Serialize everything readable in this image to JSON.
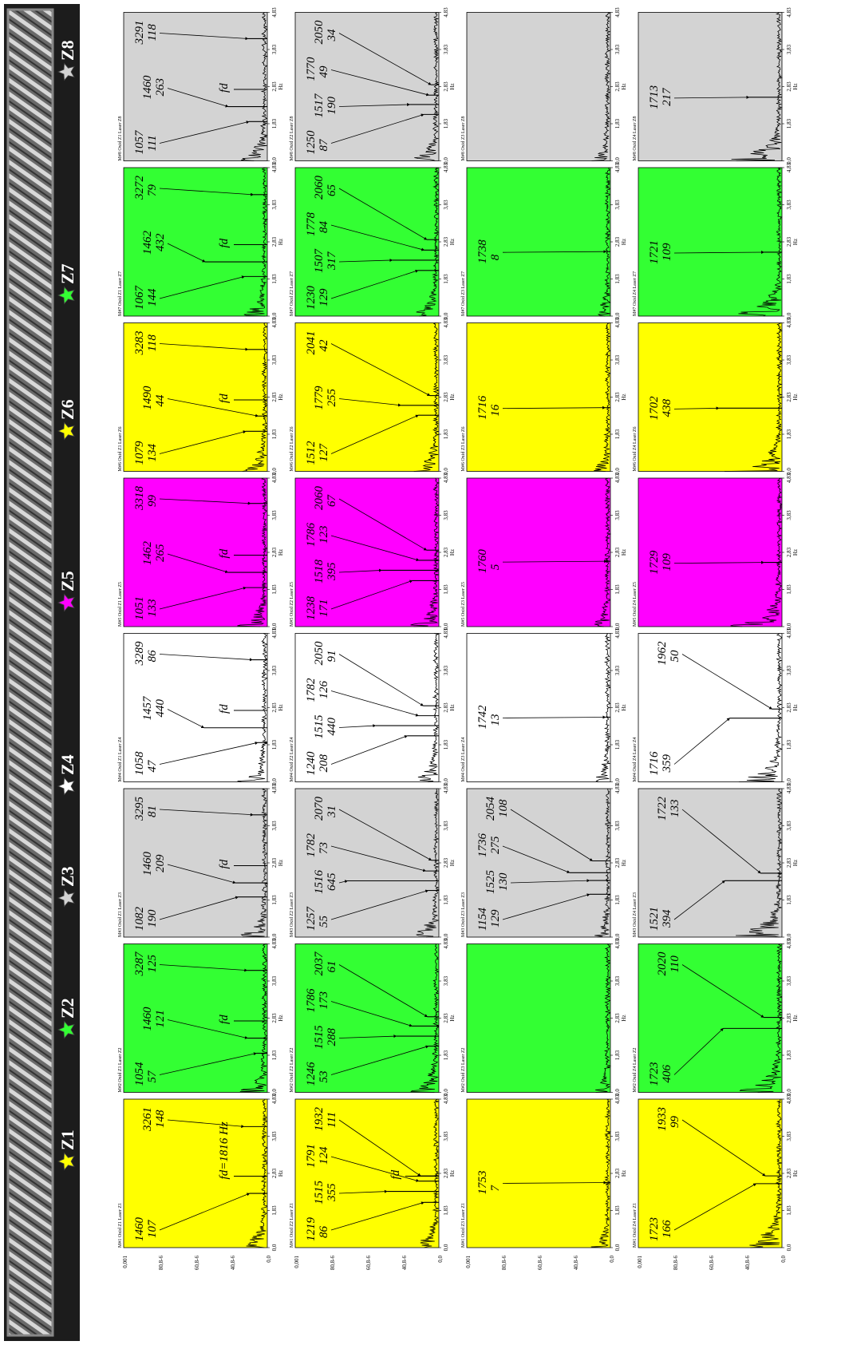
{
  "zones": [
    "Z1",
    "Z2",
    "Z3",
    "Z4",
    "Z5",
    "Z6",
    "Z7",
    "Z8"
  ],
  "freq_ticks": [
    "0,0",
    "1,83",
    "2,83",
    "3,83",
    "4,83"
  ],
  "freq_unit": "Hz",
  "amp_ticks": [
    "0,001",
    "80,8-6",
    "60,8-6",
    "40,8-6",
    "0,0"
  ],
  "columns": [
    {
      "panels": [
        {
          "title": "M#1 Oxid Z1 Laser Z1",
          "annotations": [
            {
              "freq": 1460,
              "amp": 107
            },
            {
              "text": "fd=1816 Hz"
            },
            {
              "freq": 3261,
              "amp": 148
            }
          ]
        },
        {
          "title": "M#2 Oxid Z1 Laser Z2",
          "annotations": [
            {
              "freq": 1054,
              "amp": 57
            },
            {
              "freq": 1460,
              "amp": 121
            },
            {
              "text": "fd"
            },
            {
              "freq": 3287,
              "amp": 125
            }
          ]
        },
        {
          "title": "M#3 Oxid Z1 Laser Z3",
          "annotations": [
            {
              "freq": 1082,
              "amp": 190
            },
            {
              "freq": 1460,
              "amp": 209
            },
            {
              "text": "fd"
            },
            {
              "freq": 3295,
              "amp": 81
            }
          ]
        },
        {
          "title": "M#4 Oxid Z1 Laser Z4",
          "annotations": [
            {
              "freq": 1058,
              "amp": 47
            },
            {
              "freq": 1457,
              "amp": 440
            },
            {
              "text": "fd"
            },
            {
              "freq": 3289,
              "amp": 86
            }
          ]
        },
        {
          "title": "M#5 Oxid Z1 Laser Z5",
          "annotations": [
            {
              "freq": 1051,
              "amp": 133
            },
            {
              "freq": 1462,
              "amp": 265
            },
            {
              "text": "fd"
            },
            {
              "freq": 3318,
              "amp": 99
            }
          ]
        },
        {
          "title": "M#6 Oxid Z1 Laser Z6",
          "annotations": [
            {
              "freq": 1079,
              "amp": 134
            },
            {
              "freq": 1490,
              "amp": 44
            },
            {
              "text": "fd"
            },
            {
              "freq": 3283,
              "amp": 118
            }
          ]
        },
        {
          "title": "M#7 Oxid Z1 Laser Z7",
          "annotations": [
            {
              "freq": 1067,
              "amp": 144
            },
            {
              "freq": 1462,
              "amp": 432
            },
            {
              "text": "fd"
            },
            {
              "freq": 3272,
              "amp": 79
            }
          ]
        },
        {
          "title": "M#8 Oxid Z1 Laser Z8",
          "annotations": [
            {
              "freq": 1057,
              "amp": 111
            },
            {
              "freq": 1460,
              "amp": 263
            },
            {
              "text": "fd"
            },
            {
              "freq": 3291,
              "amp": 118
            }
          ]
        }
      ]
    },
    {
      "panels": [
        {
          "title": "M#1 Oxid Z2 Laser Z1",
          "annotations": [
            {
              "freq": 1219,
              "amp": 86
            },
            {
              "freq": 1515,
              "amp": 355
            },
            {
              "freq": 1791,
              "amp": 124
            },
            {
              "text": "fd"
            },
            {
              "freq": 1932,
              "amp": 111
            }
          ]
        },
        {
          "title": "M#2 Oxid Z2 Laser Z2",
          "annotations": [
            {
              "freq": 1246,
              "amp": 53
            },
            {
              "freq": 1515,
              "amp": 288
            },
            {
              "freq": 1786,
              "amp": 173
            },
            {
              "freq": 2037,
              "amp": 61
            }
          ]
        },
        {
          "title": "M#3 Oxid Z2 Laser Z3",
          "annotations": [
            {
              "freq": 1257,
              "amp": 55
            },
            {
              "freq": 1516,
              "amp": 645
            },
            {
              "freq": 1782,
              "amp": 73
            },
            {
              "freq": 2070,
              "amp": 31
            }
          ]
        },
        {
          "title": "M#4 Oxid Z2 Laser Z4",
          "annotations": [
            {
              "freq": 1240,
              "amp": 208
            },
            {
              "freq": 1515,
              "amp": 440
            },
            {
              "freq": 1782,
              "amp": 126
            },
            {
              "freq": 2050,
              "amp": 91
            }
          ]
        },
        {
          "title": "M#5 Oxid Z2 Laser Z5",
          "annotations": [
            {
              "freq": 1238,
              "amp": 171
            },
            {
              "freq": 1518,
              "amp": 395
            },
            {
              "freq": 1786,
              "amp": 123
            },
            {
              "freq": 2060,
              "amp": 67
            }
          ]
        },
        {
          "title": "M#6 Oxid Z2 Laser Z6",
          "annotations": [
            {
              "freq": 1512,
              "amp": 127
            },
            {
              "freq": 1779,
              "amp": 255
            },
            {
              "freq": 2041,
              "amp": 42
            }
          ]
        },
        {
          "title": "M#7 Oxid Z2 Laser Z7",
          "annotations": [
            {
              "freq": 1230,
              "amp": 129
            },
            {
              "freq": 1507,
              "amp": 317
            },
            {
              "freq": 1778,
              "amp": 84
            },
            {
              "freq": 2060,
              "amp": 65
            }
          ]
        },
        {
          "title": "M#8 Oxid Z2 Laser Z8",
          "annotations": [
            {
              "freq": 1250,
              "amp": 87
            },
            {
              "freq": 1517,
              "amp": 190
            },
            {
              "freq": 1770,
              "amp": 49
            },
            {
              "freq": 2050,
              "amp": 34
            }
          ]
        }
      ]
    },
    {
      "panels": [
        {
          "title": "M#1 Oxid Z3 Laser Z1",
          "annotations": [
            {
              "freq": 1753,
              "amp": 7
            }
          ]
        },
        {
          "title": "M#2 Oxid Z3 Laser Z2",
          "annotations": []
        },
        {
          "title": "M#3 Oxid Z3 Laser Z3",
          "annotations": [
            {
              "freq": 1154,
              "amp": 129
            },
            {
              "freq": 1525,
              "amp": 130
            },
            {
              "freq": 1736,
              "amp": 275
            },
            {
              "freq": 2054,
              "amp": 108
            }
          ]
        },
        {
          "title": "M#4 Oxid Z3 Laser Z4",
          "annotations": [
            {
              "freq": 1742,
              "amp": 13
            }
          ]
        },
        {
          "title": "M#5 Oxid Z3 Laser Z5",
          "annotations": [
            {
              "freq": 1760,
              "amp": 5
            }
          ]
        },
        {
          "title": "M#6 Oxid Z3 Laser Z6",
          "annotations": [
            {
              "freq": 1716,
              "amp": 16
            }
          ]
        },
        {
          "title": "M#7 Oxid Z3 Laser Z7",
          "annotations": [
            {
              "freq": 1738,
              "amp": 8
            }
          ]
        },
        {
          "title": "M#8 Oxid Z3 Laser Z8",
          "annotations": []
        }
      ]
    },
    {
      "panels": [
        {
          "title": "M#1 Oxid Z4 Laser Z1",
          "annotations": [
            {
              "freq": 1723,
              "amp": 166
            },
            {
              "freq": 1933,
              "amp": 99
            }
          ]
        },
        {
          "title": "M#2 Oxid Z4 Laser Z2",
          "annotations": [
            {
              "freq": 1723,
              "amp": 406
            },
            {
              "freq": 2020,
              "amp": 110
            }
          ]
        },
        {
          "title": "M#3 Oxid Z4 Laser Z3",
          "annotations": [
            {
              "freq": 1521,
              "amp": 394
            },
            {
              "freq": 1722,
              "amp": 133
            }
          ]
        },
        {
          "title": "M#4 Oxid Z4 Laser Z4",
          "annotations": [
            {
              "freq": 1716,
              "amp": 359
            },
            {
              "freq": 1962,
              "amp": 50
            }
          ]
        },
        {
          "title": "M#5 Oxid Z4 Laser Z5",
          "annotations": [
            {
              "freq": 1729,
              "amp": 109
            }
          ]
        },
        {
          "title": "M#6 Oxid Z4 Laser Z6",
          "annotations": [
            {
              "freq": 1702,
              "amp": 438
            }
          ]
        },
        {
          "title": "M#7 Oxid Z4 Laser Z7",
          "annotations": [
            {
              "freq": 1721,
              "amp": 109
            }
          ]
        },
        {
          "title": "M#8 Oxid Z4 Laser Z8",
          "annotations": [
            {
              "freq": 1713,
              "amp": 217
            }
          ]
        }
      ]
    }
  ]
}
